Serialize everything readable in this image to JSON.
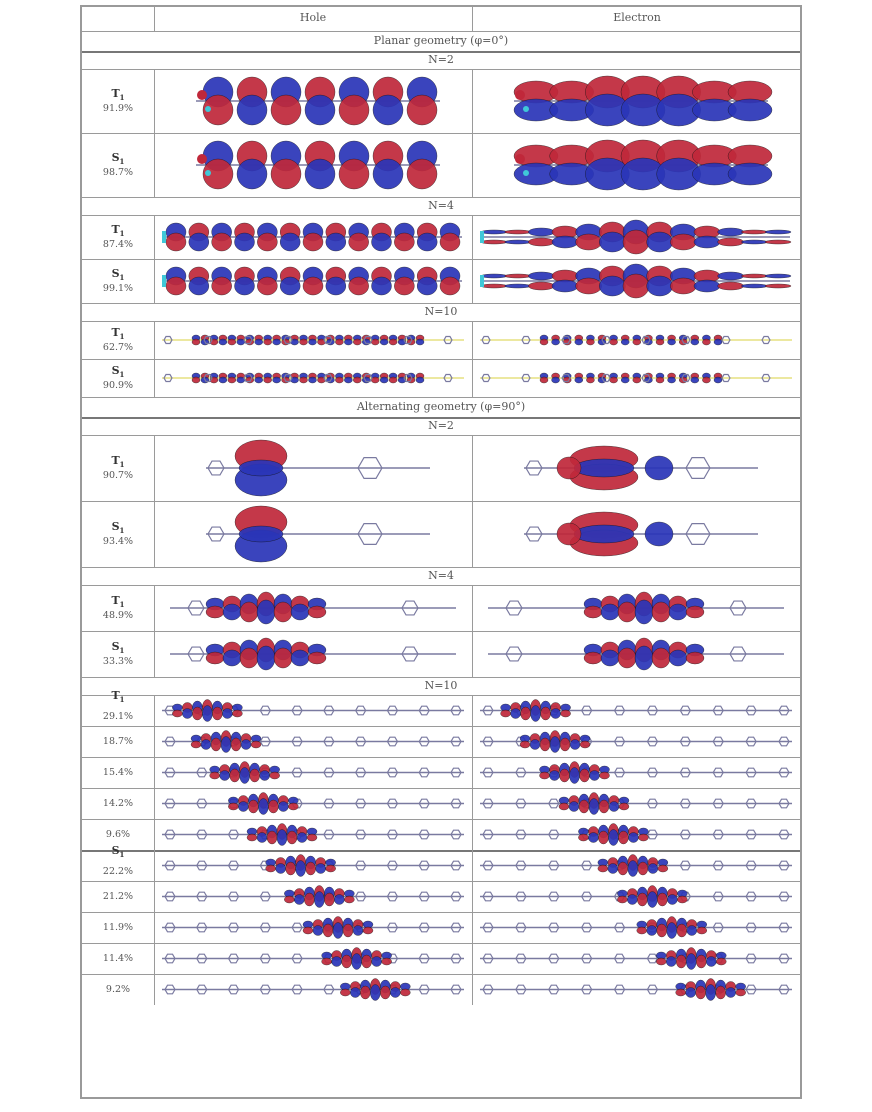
{
  "header": {
    "col_hole": "Hole",
    "col_electron": "Electron"
  },
  "sections": [
    {
      "title": "Planar geometry (φ=0°)",
      "blocks": [
        {
          "label": "N=2",
          "rows": [
            {
              "state": "T",
              "sub": "1",
              "pct": "91.9%",
              "style": "planar-big"
            },
            {
              "state": "S",
              "sub": "1",
              "pct": "98.7%",
              "style": "planar-big"
            }
          ]
        },
        {
          "label": "N=4",
          "rows": [
            {
              "state": "T",
              "sub": "1",
              "pct": "87.4%",
              "style": "planar-mid"
            },
            {
              "state": "S",
              "sub": "1",
              "pct": "99.1%",
              "style": "planar-mid"
            }
          ]
        },
        {
          "label": "N=10",
          "rows": [
            {
              "state": "T",
              "sub": "1",
              "pct": "62.7%",
              "style": "planar-thin"
            },
            {
              "state": "S",
              "sub": "1",
              "pct": "90.9%",
              "style": "planar-thin"
            }
          ]
        }
      ]
    },
    {
      "title": "Alternating geometry (φ=90°)",
      "blocks": [
        {
          "label": "N=2",
          "rows": [
            {
              "state": "T",
              "sub": "1",
              "pct": "90.7%",
              "style": "alt-big"
            },
            {
              "state": "S",
              "sub": "1",
              "pct": "93.4%",
              "style": "alt-big"
            }
          ]
        },
        {
          "label": "N=4",
          "rows": [
            {
              "state": "T",
              "sub": "1",
              "pct": "48.9%",
              "style": "alt-mid"
            },
            {
              "state": "S",
              "sub": "1",
              "pct": "33.3%",
              "style": "alt-mid"
            }
          ]
        },
        {
          "label": "N=10",
          "groups": [
            {
              "state": "T",
              "sub": "1",
              "pcts": [
                "29.1%",
                "18.7%",
                "15.4%",
                "14.2%",
                "9.6%"
              ]
            },
            {
              "state": "S",
              "sub": "1",
              "pcts": [
                "22.2%",
                "21.2%",
                "11.9%",
                "11.4%",
                "9.2%"
              ]
            }
          ]
        }
      ]
    }
  ],
  "colors": {
    "lobe_red": "#c0283a",
    "lobe_blue": "#2a35b8",
    "backbone": "#7a7aa0",
    "atom_yellow": "#d8d040",
    "atom_cyan": "#40c8d8"
  }
}
